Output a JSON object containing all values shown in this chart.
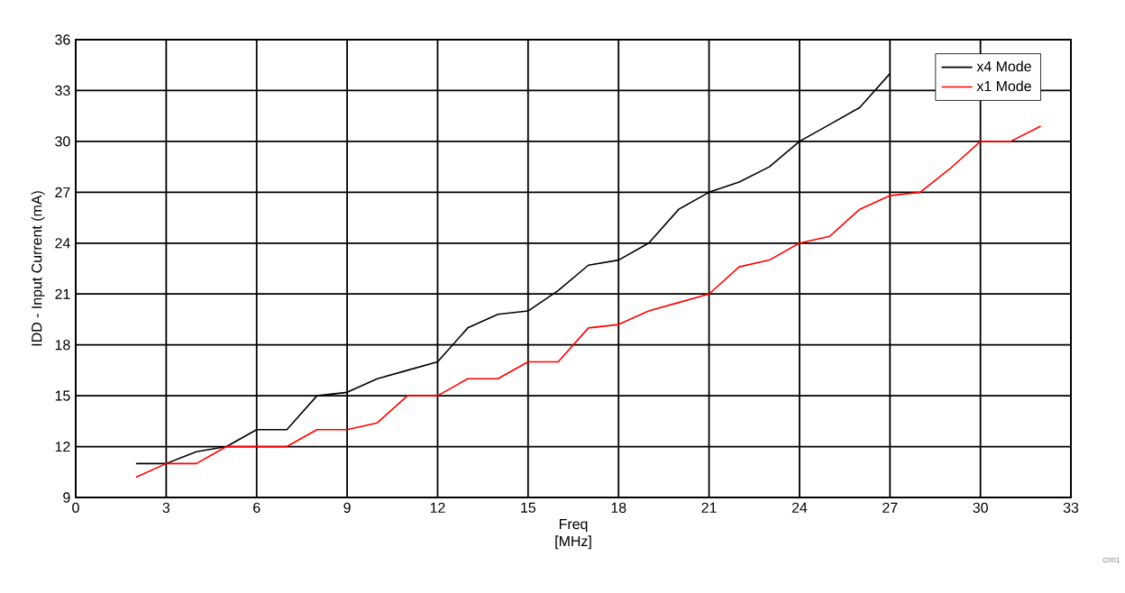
{
  "chart_data": {
    "type": "line",
    "xlabel": "Freq [MHz]",
    "ylabel": "IDD - Input Current  (mA)",
    "xlim": [
      0,
      33
    ],
    "xticks": [
      0,
      3,
      6,
      9,
      12,
      15,
      18,
      21,
      24,
      27,
      30,
      33
    ],
    "ylim": [
      9,
      36
    ],
    "yticks": [
      9,
      12,
      15,
      18,
      21,
      24,
      27,
      30,
      33,
      36
    ],
    "grid": true,
    "legend": "top right",
    "marker": "none",
    "line_style": "solid",
    "annotations": [
      "C001"
    ],
    "series": [
      {
        "name": "x4 Mode",
        "color": "#000000",
        "x": [
          2,
          3,
          4,
          5,
          6,
          7,
          8,
          9,
          10,
          11,
          12,
          13,
          14,
          15,
          16,
          17,
          18,
          19,
          20,
          21,
          22,
          23,
          24,
          25,
          26,
          27
        ],
        "values": [
          11,
          11,
          11.7,
          12,
          13,
          13,
          15,
          15.2,
          16,
          16.5,
          17,
          19,
          19.8,
          20,
          21.2,
          22.7,
          23,
          24,
          26,
          27,
          27.6,
          28.5,
          30,
          31,
          32,
          34
        ]
      },
      {
        "name": "x1 Mode",
        "color": "#ff0000",
        "x": [
          2,
          3,
          4,
          5,
          6,
          7,
          8,
          9,
          10,
          11,
          12,
          13,
          14,
          15,
          16,
          17,
          18,
          19,
          20,
          21,
          22,
          23,
          24,
          25,
          26,
          27,
          28,
          29,
          30,
          31,
          32
        ],
        "values": [
          10.2,
          11,
          11,
          12,
          12,
          12,
          13,
          13,
          13.4,
          15,
          15,
          16,
          16,
          17,
          17,
          19,
          19.2,
          20,
          20.5,
          21,
          22.6,
          23,
          24,
          24.4,
          26,
          26.8,
          27,
          28.4,
          30,
          30,
          30.9
        ]
      }
    ]
  }
}
